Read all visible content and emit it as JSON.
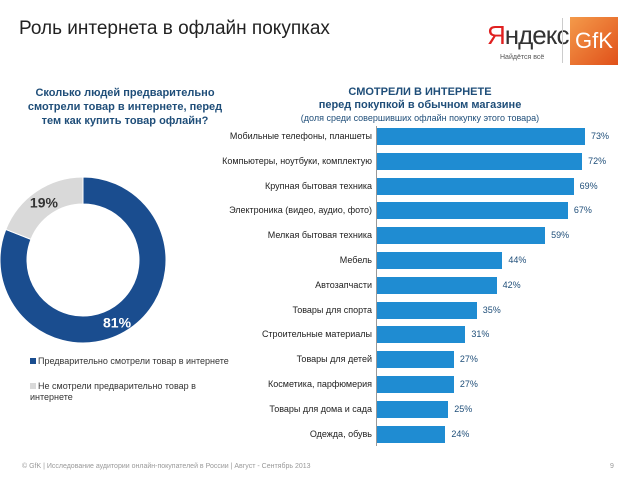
{
  "header": {
    "title": "Роль интернета в офлайн покупках",
    "logo_yandex": "Яндекс",
    "logo_yandex_tagline": "Найдётся всё",
    "logo_gfk": "GfK"
  },
  "left": {
    "question": "Сколько людей предварительно смотрели товар в интернете, перед тем как купить товар офлайн?"
  },
  "right": {
    "title": "СМОТРЕЛИ В ИНТЕРНЕТЕ",
    "subtitle": "перед покупкой в обычном магазине",
    "note": "(доля среди совершивших офлайн покупку этого товара)"
  },
  "chart_data": [
    {
      "type": "pie",
      "donut": true,
      "categories": [
        "Предварительно смотрели товар в интернете",
        "Не смотрели предварительно товар в интернете"
      ],
      "values": [
        81,
        19
      ],
      "labels": [
        "81%",
        "19%"
      ],
      "colors": [
        "#1a4d8f",
        "#d9d9d9"
      ],
      "legend": "bottom"
    },
    {
      "type": "bar",
      "orientation": "horizontal",
      "color": "#1f8cd2",
      "categories": [
        "Мобильные телефоны, планшеты",
        "Компьютеры, ноутбуки, комплектую",
        "Крупная бытовая техника",
        "Электроника (видео, аудио, фото)",
        "Мелкая бытовая техника",
        "Мебель",
        "Автозапчасти",
        "Товары для спорта",
        "Строительные материалы",
        "Товары для детей",
        "Косметика, парфюмерия",
        "Товары для дома и сада",
        "Одежда, обувь"
      ],
      "values": [
        73,
        72,
        69,
        67,
        59,
        44,
        42,
        35,
        31,
        27,
        27,
        25,
        24
      ],
      "labels": [
        "73%",
        "72%",
        "69%",
        "67%",
        "59%",
        "44%",
        "42%",
        "35%",
        "31%",
        "27%",
        "27%",
        "25%",
        "24%"
      ],
      "unit": "%"
    }
  ],
  "footer": {
    "text": "© GfK | Исследование аудитории онлайн-покупателей в России | Август - Сентябрь 2013",
    "page": "9"
  }
}
